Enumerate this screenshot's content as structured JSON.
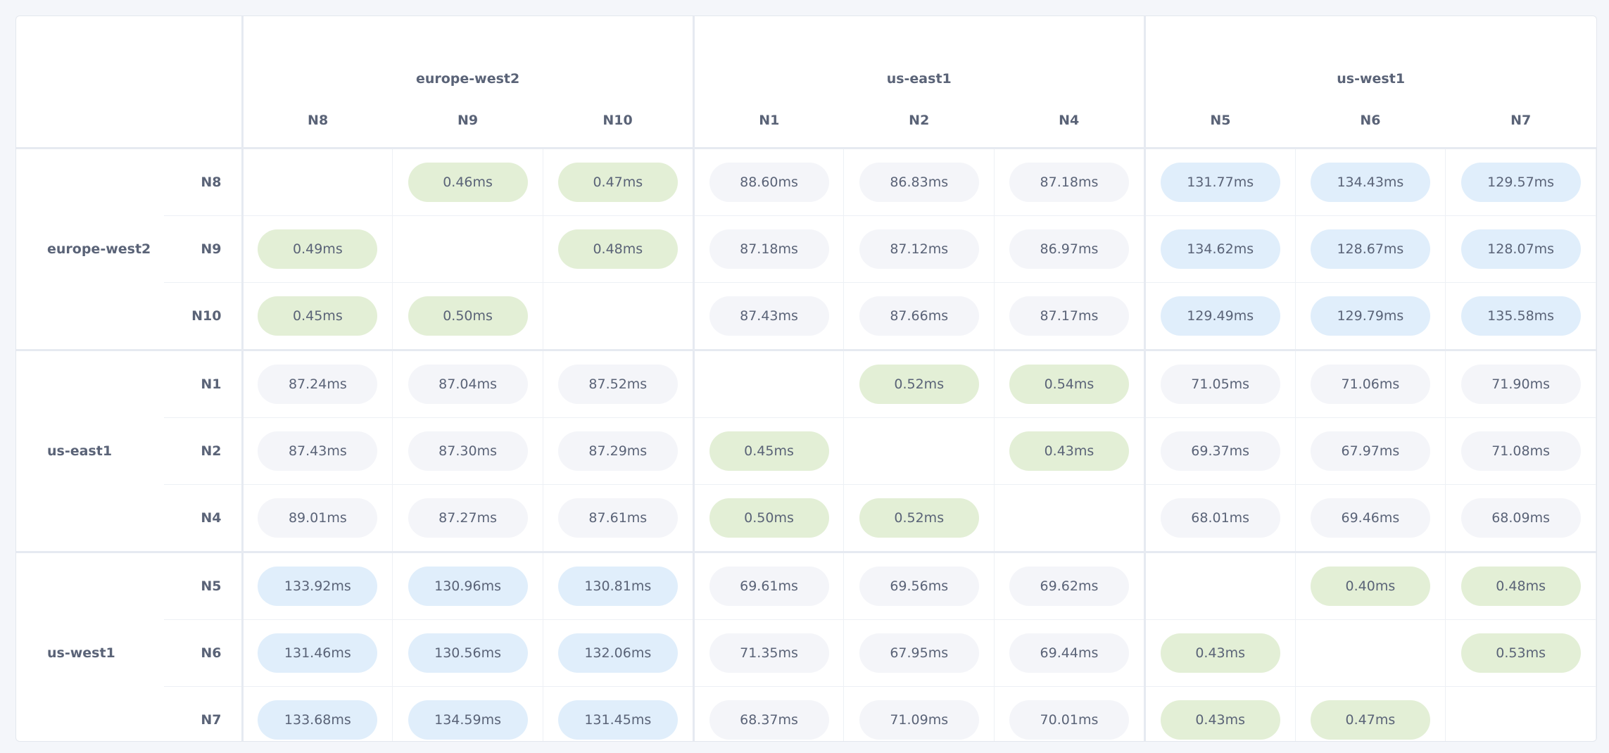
{
  "colors": {
    "same_region": "#e3efd6",
    "eu_uswest": "#e0eefb",
    "other": "#f4f5f9",
    "text": "#5a6377"
  },
  "columns": [
    {
      "region": "europe-west2",
      "nodes": [
        "N8",
        "N9",
        "N10"
      ]
    },
    {
      "region": "us-east1",
      "nodes": [
        "N1",
        "N2",
        "N4"
      ]
    },
    {
      "region": "us-west1",
      "nodes": [
        "N5",
        "N6",
        "N7"
      ]
    }
  ],
  "rows": [
    {
      "region": "europe-west2",
      "node": "N8",
      "cells": [
        [
          "",
          ""
        ],
        [
          "0.46ms",
          "green"
        ],
        [
          "0.47ms",
          "green"
        ],
        [
          "88.60ms",
          "gray"
        ],
        [
          "86.83ms",
          "gray"
        ],
        [
          "87.18ms",
          "gray"
        ],
        [
          "131.77ms",
          "blue"
        ],
        [
          "134.43ms",
          "blue"
        ],
        [
          "129.57ms",
          "blue"
        ]
      ]
    },
    {
      "region": "",
      "node": "N9",
      "cells": [
        [
          "0.49ms",
          "green"
        ],
        [
          "",
          ""
        ],
        [
          "0.48ms",
          "green"
        ],
        [
          "87.18ms",
          "gray"
        ],
        [
          "87.12ms",
          "gray"
        ],
        [
          "86.97ms",
          "gray"
        ],
        [
          "134.62ms",
          "blue"
        ],
        [
          "128.67ms",
          "blue"
        ],
        [
          "128.07ms",
          "blue"
        ]
      ]
    },
    {
      "region": "",
      "node": "N10",
      "cells": [
        [
          "0.45ms",
          "green"
        ],
        [
          "0.50ms",
          "green"
        ],
        [
          "",
          ""
        ],
        [
          "87.43ms",
          "gray"
        ],
        [
          "87.66ms",
          "gray"
        ],
        [
          "87.17ms",
          "gray"
        ],
        [
          "129.49ms",
          "blue"
        ],
        [
          "129.79ms",
          "blue"
        ],
        [
          "135.58ms",
          "blue"
        ]
      ]
    },
    {
      "region": "us-east1",
      "node": "N1",
      "cells": [
        [
          "87.24ms",
          "gray"
        ],
        [
          "87.04ms",
          "gray"
        ],
        [
          "87.52ms",
          "gray"
        ],
        [
          "",
          ""
        ],
        [
          "0.52ms",
          "green"
        ],
        [
          "0.54ms",
          "green"
        ],
        [
          "71.05ms",
          "gray"
        ],
        [
          "71.06ms",
          "gray"
        ],
        [
          "71.90ms",
          "gray"
        ]
      ]
    },
    {
      "region": "",
      "node": "N2",
      "cells": [
        [
          "87.43ms",
          "gray"
        ],
        [
          "87.30ms",
          "gray"
        ],
        [
          "87.29ms",
          "gray"
        ],
        [
          "0.45ms",
          "green"
        ],
        [
          "",
          ""
        ],
        [
          "0.43ms",
          "green"
        ],
        [
          "69.37ms",
          "gray"
        ],
        [
          "67.97ms",
          "gray"
        ],
        [
          "71.08ms",
          "gray"
        ]
      ]
    },
    {
      "region": "",
      "node": "N4",
      "cells": [
        [
          "89.01ms",
          "gray"
        ],
        [
          "87.27ms",
          "gray"
        ],
        [
          "87.61ms",
          "gray"
        ],
        [
          "0.50ms",
          "green"
        ],
        [
          "0.52ms",
          "green"
        ],
        [
          "",
          ""
        ],
        [
          "68.01ms",
          "gray"
        ],
        [
          "69.46ms",
          "gray"
        ],
        [
          "68.09ms",
          "gray"
        ]
      ]
    },
    {
      "region": "us-west1",
      "node": "N5",
      "cells": [
        [
          "133.92ms",
          "blue"
        ],
        [
          "130.96ms",
          "blue"
        ],
        [
          "130.81ms",
          "blue"
        ],
        [
          "69.61ms",
          "gray"
        ],
        [
          "69.56ms",
          "gray"
        ],
        [
          "69.62ms",
          "gray"
        ],
        [
          "",
          ""
        ],
        [
          "0.40ms",
          "green"
        ],
        [
          "0.48ms",
          "green"
        ]
      ]
    },
    {
      "region": "",
      "node": "N6",
      "cells": [
        [
          "131.46ms",
          "blue"
        ],
        [
          "130.56ms",
          "blue"
        ],
        [
          "132.06ms",
          "blue"
        ],
        [
          "71.35ms",
          "gray"
        ],
        [
          "67.95ms",
          "gray"
        ],
        [
          "69.44ms",
          "gray"
        ],
        [
          "0.43ms",
          "green"
        ],
        [
          "",
          ""
        ],
        [
          "0.53ms",
          "green"
        ]
      ]
    },
    {
      "region": "",
      "node": "N7",
      "cells": [
        [
          "133.68ms",
          "blue"
        ],
        [
          "134.59ms",
          "blue"
        ],
        [
          "131.45ms",
          "blue"
        ],
        [
          "68.37ms",
          "gray"
        ],
        [
          "71.09ms",
          "gray"
        ],
        [
          "70.01ms",
          "gray"
        ],
        [
          "0.43ms",
          "green"
        ],
        [
          "0.47ms",
          "green"
        ],
        [
          "",
          ""
        ]
      ]
    }
  ]
}
